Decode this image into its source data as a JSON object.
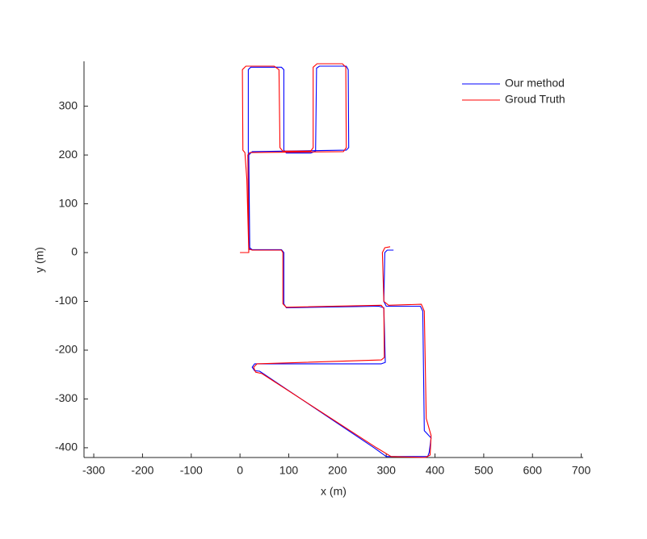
{
  "chart_data": {
    "type": "line",
    "xlabel": "x (m)",
    "ylabel": "y (m)",
    "xlim": [
      -320,
      704
    ],
    "ylim": [
      -420,
      392
    ],
    "xticks": [
      -300,
      -200,
      -100,
      0,
      100,
      200,
      300,
      400,
      500,
      600,
      700
    ],
    "yticks": [
      -400,
      -300,
      -200,
      -100,
      0,
      100,
      200,
      300
    ],
    "grid": false,
    "legend": "northeast",
    "series": [
      {
        "name": "Our method",
        "color": "#0000ff",
        "x": [
          20,
          17,
          17,
          22,
          85,
          90,
          90,
          95,
          145,
          155,
          157,
          163,
          218,
          222,
          223,
          218,
          25,
          18,
          20,
          25,
          85,
          90,
          90,
          95,
          285,
          295,
          298,
          290,
          30,
          25,
          30,
          40,
          275,
          300,
          385,
          388,
          392,
          378,
          375,
          370,
          300,
          295,
          297,
          302,
          315
        ],
        "values": [
          5,
          200,
          375,
          380,
          380,
          375,
          210,
          204,
          204,
          208,
          378,
          382,
          382,
          375,
          215,
          210,
          207,
          200,
          10,
          6,
          6,
          0,
          -105,
          -113,
          -110,
          -113,
          -225,
          -228,
          -228,
          -235,
          -242,
          -243,
          -400,
          -418,
          -418,
          -410,
          -380,
          -365,
          -120,
          -110,
          -110,
          -100,
          0,
          5,
          5
        ]
      },
      {
        "name": "Groud Truth",
        "color": "#ff0000",
        "x": [
          0,
          18,
          14,
          10,
          6,
          5,
          12,
          70,
          80,
          82,
          88,
          145,
          150,
          150,
          158,
          210,
          217,
          218,
          212,
          20,
          16,
          18,
          25,
          85,
          88,
          88,
          95,
          290,
          295,
          296,
          290,
          35,
          28,
          32,
          45,
          280,
          310,
          380,
          390,
          392,
          382,
          378,
          372,
          305,
          295,
          292,
          297,
          308
        ],
        "values": [
          0,
          0,
          150,
          205,
          210,
          375,
          382,
          382,
          375,
          215,
          208,
          208,
          215,
          380,
          387,
          387,
          380,
          215,
          207,
          205,
          200,
          8,
          5,
          5,
          0,
          -105,
          -112,
          -108,
          -115,
          -215,
          -220,
          -228,
          -235,
          -245,
          -248,
          -400,
          -418,
          -420,
          -415,
          -375,
          -340,
          -120,
          -106,
          -108,
          -100,
          0,
          10,
          12
        ]
      }
    ]
  }
}
